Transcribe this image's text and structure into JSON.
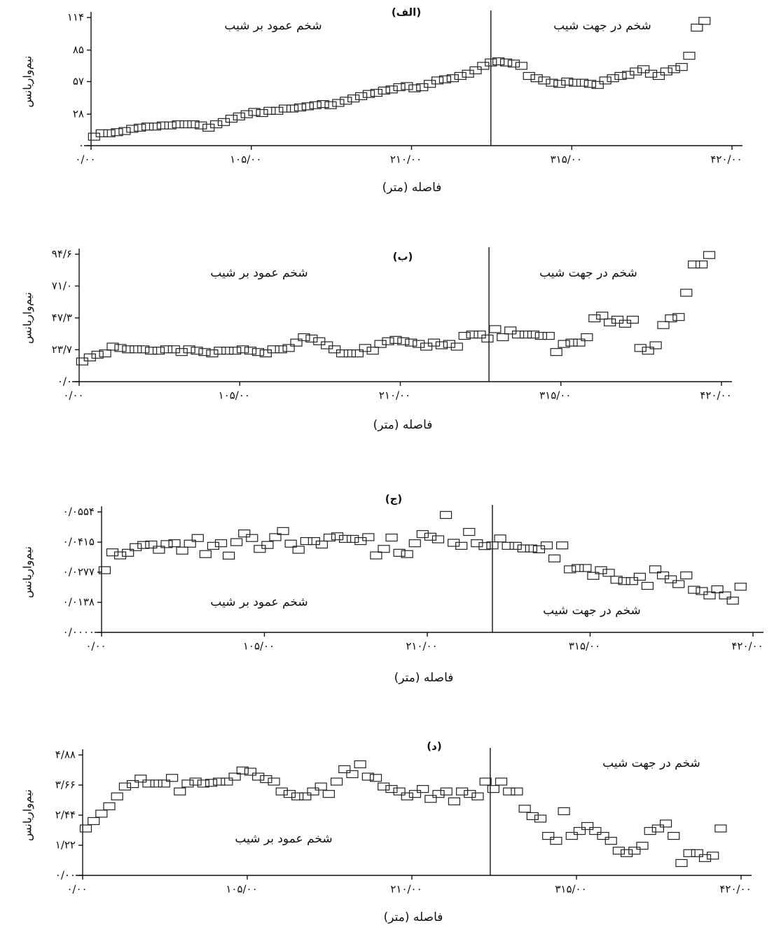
{
  "chart_data": [
    {
      "type": "scatter",
      "title": "(الف)",
      "ylabel": "نیم‌واریانس",
      "xlabel": "فاصله (متر)",
      "annotations": [
        "شخم عمود بر شیب",
        "شخم در جهت شیب"
      ],
      "divider_x": 262,
      "color": "#222222",
      "xlim": [
        0,
        420
      ],
      "ylim": [
        0,
        114
      ],
      "xticks": [
        {
          "value": 0,
          "label": "۰/۰۰"
        },
        {
          "value": 105,
          "label": "۱۰۵/۰۰"
        },
        {
          "value": 210,
          "label": "۲۱۰/۰۰"
        },
        {
          "value": 315,
          "label": "۳۱۵/۰۰"
        },
        {
          "value": 420,
          "label": "۴۲۰/۰۰"
        }
      ],
      "yticks": [
        {
          "value": 0,
          "label": "۰"
        },
        {
          "value": 28,
          "label": "۲۸"
        },
        {
          "value": 57,
          "label": "۵۷"
        },
        {
          "value": 85,
          "label": "۸۵"
        },
        {
          "value": 114,
          "label": "۱۱۴"
        }
      ],
      "x": [
        2,
        7,
        12,
        17,
        22,
        27,
        32,
        37,
        42,
        47,
        52,
        57,
        62,
        67,
        72,
        77,
        82,
        87,
        92,
        97,
        102,
        107,
        112,
        117,
        122,
        127,
        132,
        137,
        142,
        147,
        152,
        157,
        162,
        167,
        172,
        177,
        182,
        187,
        192,
        197,
        202,
        207,
        212,
        217,
        222,
        227,
        232,
        237,
        242,
        247,
        252,
        257,
        262,
        267,
        272,
        277,
        282,
        287,
        292,
        297,
        302,
        307,
        312,
        317,
        322,
        327,
        332,
        337,
        342,
        347,
        352,
        357,
        362,
        367,
        372,
        377,
        382,
        387,
        392,
        397,
        402
      ],
      "values": [
        8,
        11,
        11,
        12,
        13,
        15,
        16,
        17,
        17,
        18,
        18,
        19,
        19,
        19,
        18,
        16,
        19,
        21,
        24,
        26,
        28,
        30,
        29,
        31,
        31,
        33,
        33,
        34,
        35,
        36,
        37,
        36,
        38,
        40,
        42,
        44,
        46,
        47,
        49,
        50,
        52,
        53,
        51,
        52,
        55,
        58,
        59,
        60,
        62,
        64,
        67,
        71,
        74,
        75,
        74,
        73,
        71,
        62,
        60,
        58,
        56,
        55,
        57,
        56,
        56,
        55,
        54,
        58,
        60,
        62,
        63,
        66,
        68,
        64,
        62,
        66,
        68,
        70,
        80,
        105,
        111
      ]
    },
    {
      "type": "scatter",
      "title": "(ب)",
      "ylabel": "نیم‌واریانس",
      "xlabel": "فاصله (متر)",
      "annotations": [
        "شخم عمود بر شیب",
        "شخم در جهت شیب"
      ],
      "divider_x": 268,
      "color": "#222222",
      "xlim": [
        0,
        420
      ],
      "ylim": [
        0,
        94.6
      ],
      "xticks": [
        {
          "value": 0,
          "label": "۰/۰۰"
        },
        {
          "value": 105,
          "label": "۱۰۵/۰۰"
        },
        {
          "value": 210,
          "label": "۲۱۰/۰۰"
        },
        {
          "value": 315,
          "label": "۳۱۵/۰۰"
        },
        {
          "value": 420,
          "label": "۴۲۰/۰۰"
        }
      ],
      "yticks": [
        {
          "value": 0,
          "label": "۰/۰"
        },
        {
          "value": 23.7,
          "label": "۲۳/۷"
        },
        {
          "value": 47.3,
          "label": "۴۷/۳"
        },
        {
          "value": 71.0,
          "label": "۷۱/۰"
        },
        {
          "value": 94.6,
          "label": "۹۴/۶"
        }
      ],
      "x": [
        2,
        7,
        12,
        17,
        22,
        27,
        32,
        37,
        42,
        47,
        52,
        57,
        62,
        67,
        72,
        77,
        82,
        87,
        92,
        97,
        102,
        107,
        112,
        117,
        122,
        127,
        132,
        137,
        142,
        147,
        152,
        157,
        162,
        167,
        172,
        177,
        182,
        187,
        192,
        197,
        202,
        207,
        212,
        217,
        222,
        227,
        232,
        237,
        242,
        247,
        252,
        257,
        262,
        267,
        272,
        277,
        282,
        287,
        292,
        297,
        302,
        307,
        312,
        317,
        322,
        327,
        332,
        337,
        342,
        347,
        352,
        357,
        362,
        367,
        372,
        377,
        382,
        387,
        392,
        397,
        402,
        407,
        412
      ],
      "values": [
        15,
        18,
        20,
        21,
        26,
        25,
        24,
        24,
        24,
        23,
        23,
        24,
        24,
        22,
        24,
        23,
        22,
        21,
        23,
        23,
        23,
        24,
        23,
        22,
        21,
        24,
        24,
        25,
        29,
        33,
        32,
        30,
        27,
        24,
        21,
        21,
        21,
        25,
        23,
        28,
        30,
        31,
        30,
        29,
        28,
        26,
        29,
        27,
        28,
        26,
        34,
        35,
        35,
        32,
        39,
        33,
        38,
        35,
        35,
        35,
        34,
        34,
        22,
        28,
        29,
        29,
        33,
        47,
        49,
        44,
        46,
        43,
        46,
        25,
        23,
        27,
        42,
        47,
        48,
        66,
        87,
        87,
        94
      ]
    },
    {
      "type": "scatter",
      "title": "(ج)",
      "ylabel": "نیم‌واریانس",
      "xlabel": "فاصله (متر)",
      "annotations": [
        "شخم عمود بر شیب",
        "شخم در جهت شیب"
      ],
      "divider_x": 252,
      "color": "#222222",
      "xlim": [
        0,
        420
      ],
      "ylim": [
        0,
        0.0554
      ],
      "xticks": [
        {
          "value": 0,
          "label": "۰/۰۰"
        },
        {
          "value": 105,
          "label": "۱۰۵/۰۰"
        },
        {
          "value": 210,
          "label": "۲۱۰/۰۰"
        },
        {
          "value": 315,
          "label": "۳۱۵/۰۰"
        },
        {
          "value": 420,
          "label": "۴۲۰/۰۰"
        }
      ],
      "yticks": [
        {
          "value": 0,
          "label": "۰/۰۰۰۰"
        },
        {
          "value": 0.0138,
          "label": "۰/۰۱۳۸"
        },
        {
          "value": 0.0277,
          "label": "۰/۰۲۷۷"
        },
        {
          "value": 0.0415,
          "label": "۰/۰۴۱۵"
        },
        {
          "value": 0.0554,
          "label": "۰/۰۵۵۴"
        }
      ],
      "x": [
        2,
        7,
        12,
        17,
        22,
        27,
        32,
        37,
        42,
        47,
        52,
        57,
        62,
        67,
        72,
        77,
        82,
        87,
        92,
        97,
        102,
        107,
        112,
        117,
        122,
        127,
        132,
        137,
        142,
        147,
        152,
        157,
        162,
        167,
        172,
        177,
        182,
        187,
        192,
        197,
        202,
        207,
        212,
        217,
        222,
        227,
        232,
        237,
        242,
        247,
        252,
        257,
        262,
        267,
        272,
        277,
        282,
        287,
        292,
        297,
        302,
        307,
        312,
        317,
        322,
        327,
        332,
        337,
        342,
        347,
        352,
        357,
        362,
        367,
        372,
        377,
        382,
        387,
        392,
        397,
        402,
        407,
        412
      ],
      "values": [
        0.0286,
        0.0368,
        0.0354,
        0.0366,
        0.0392,
        0.0402,
        0.0404,
        0.038,
        0.0406,
        0.041,
        0.0376,
        0.0408,
        0.0434,
        0.036,
        0.0398,
        0.041,
        0.0353,
        0.0415,
        0.0455,
        0.0434,
        0.0384,
        0.0402,
        0.0438,
        0.0466,
        0.0408,
        0.038,
        0.042,
        0.042,
        0.0404,
        0.0436,
        0.0442,
        0.043,
        0.043,
        0.042,
        0.0438,
        0.0354,
        0.0384,
        0.0436,
        0.0366,
        0.036,
        0.041,
        0.0452,
        0.044,
        0.0428,
        0.054,
        0.0412,
        0.0398,
        0.0462,
        0.041,
        0.0397,
        0.04,
        0.0432,
        0.0398,
        0.0398,
        0.0386,
        0.0386,
        0.0382,
        0.04,
        0.034,
        0.04,
        0.029,
        0.0296,
        0.0296,
        0.026,
        0.0286,
        0.0274,
        0.0242,
        0.0236,
        0.0236,
        0.0256,
        0.0214,
        0.029,
        0.0262,
        0.0244,
        0.0222,
        0.0262,
        0.0196,
        0.019,
        0.017,
        0.0198,
        0.017,
        0.0146,
        0.021
      ]
    },
    {
      "type": "scatter",
      "title": "(د)",
      "ylabel": "نیم‌واریانس",
      "xlabel": "فاصله (متر)",
      "annotations": [
        "شخم عمود بر شیب",
        "شخم در جهت شیب"
      ],
      "divider_x": 260,
      "color": "#222222",
      "xlim": [
        0,
        420
      ],
      "ylim": [
        0,
        4.88
      ],
      "xticks": [
        {
          "value": 0,
          "label": "۰/۰۰"
        },
        {
          "value": 105,
          "label": "۱۰۵/۰۰"
        },
        {
          "value": 210,
          "label": "۲۱۰/۰۰"
        },
        {
          "value": 315,
          "label": "۳۱۵/۰۰"
        },
        {
          "value": 420,
          "label": "۴۲۰/۰۰"
        }
      ],
      "yticks": [
        {
          "value": 0,
          "label": "۰/۰۰"
        },
        {
          "value": 1.22,
          "label": "۱/۲۲"
        },
        {
          "value": 2.44,
          "label": "۲/۴۴"
        },
        {
          "value": 3.66,
          "label": "۳/۶۶"
        },
        {
          "value": 4.88,
          "label": "۴/۸۸"
        }
      ],
      "x": [
        2,
        7,
        12,
        17,
        22,
        27,
        32,
        37,
        42,
        47,
        52,
        57,
        62,
        67,
        72,
        77,
        82,
        87,
        92,
        97,
        102,
        107,
        112,
        117,
        122,
        127,
        132,
        137,
        142,
        147,
        152,
        157,
        162,
        167,
        172,
        177,
        182,
        187,
        192,
        197,
        202,
        207,
        212,
        217,
        222,
        227,
        232,
        237,
        242,
        247,
        252,
        257,
        262,
        267,
        272,
        277,
        282,
        287,
        292,
        297,
        302,
        307,
        312,
        317,
        322,
        327,
        332,
        337,
        342,
        347,
        352,
        357,
        362,
        367,
        372,
        377,
        382,
        387,
        392,
        397,
        402,
        407
      ],
      "values": [
        1.9,
        2.2,
        2.5,
        2.8,
        3.2,
        3.6,
        3.7,
        3.92,
        3.72,
        3.72,
        3.72,
        3.95,
        3.4,
        3.72,
        3.8,
        3.72,
        3.75,
        3.8,
        3.8,
        4.0,
        4.25,
        4.2,
        4.0,
        3.9,
        3.8,
        3.4,
        3.3,
        3.2,
        3.2,
        3.4,
        3.6,
        3.3,
        3.8,
        4.3,
        4.1,
        4.5,
        4.0,
        3.95,
        3.6,
        3.5,
        3.4,
        3.2,
        3.3,
        3.5,
        3.1,
        3.3,
        3.4,
        3.0,
        3.4,
        3.3,
        3.2,
        3.8,
        3.5,
        3.8,
        3.4,
        3.4,
        2.7,
        2.4,
        2.3,
        1.6,
        1.4,
        2.6,
        1.6,
        1.8,
        2.0,
        1.8,
        1.6,
        1.4,
        1.0,
        0.9,
        1.0,
        1.2,
        1.8,
        1.9,
        2.1,
        1.6,
        0.5,
        0.9,
        0.9,
        0.7,
        0.8,
        1.9
      ]
    }
  ]
}
